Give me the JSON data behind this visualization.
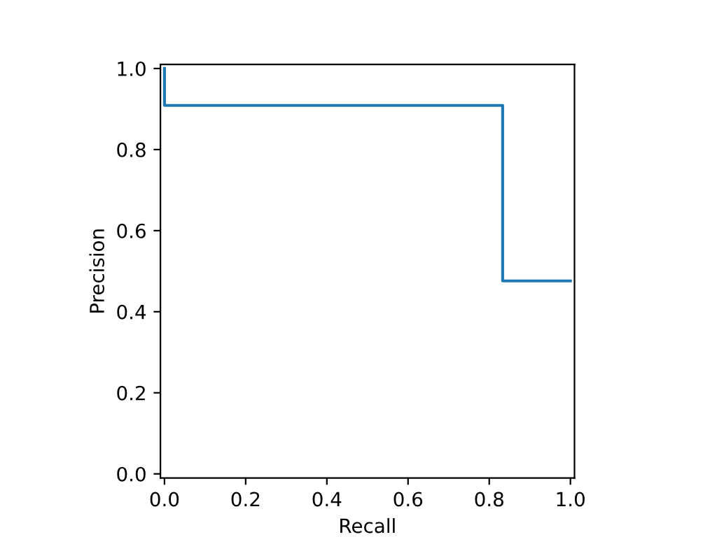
{
  "chart_data": {
    "type": "step",
    "xlabel": "Recall",
    "ylabel": "Precision",
    "x": [
      0.0,
      0.0,
      0.833,
      1.0
    ],
    "series": [
      {
        "color": "#1f77b4",
        "values": [
          1.0,
          0.909,
          0.476,
          0.476
        ]
      }
    ],
    "xlim": [
      -0.01,
      1.01
    ],
    "ylim": [
      -0.01,
      1.01
    ],
    "xticks": [
      {
        "value": 0,
        "label": "0.0"
      },
      0.2,
      0.4,
      0.6,
      0.8,
      {
        "value": 1,
        "label": "1.0"
      }
    ],
    "yticks": [
      {
        "value": 0,
        "label": "0.0"
      },
      0.2,
      0.4,
      0.6,
      0.8,
      {
        "value": 1,
        "label": "1.0"
      }
    ],
    "grid": false,
    "legend": false
  }
}
